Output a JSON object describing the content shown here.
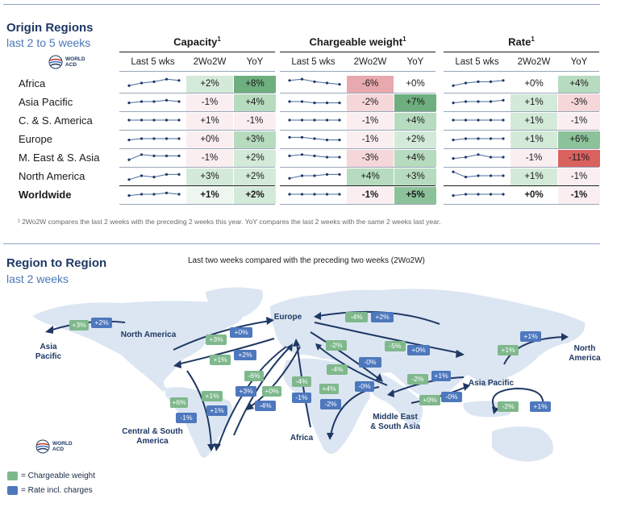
{
  "origin": {
    "title": "Origin Regions",
    "subtitle": "last 2 to 5 weeks",
    "logo_text": "WORLD ACD",
    "groups": [
      {
        "title": "Capacity",
        "sup": "1",
        "headers": [
          "Last 5 wks",
          "2Wo2W",
          "YoY"
        ]
      },
      {
        "title": "Chargeable weight",
        "sup": "1",
        "headers": [
          "Last 5 wks",
          "2Wo2W",
          "YoY"
        ]
      },
      {
        "title": "Rate",
        "sup": "1",
        "headers": [
          "Last 5 wks",
          "2Wo2W",
          "YoY"
        ]
      }
    ],
    "rows": [
      {
        "label": "Africa",
        "bold": false,
        "capacity": {
          "trend": [
            3,
            5,
            6,
            8,
            7
          ],
          "w2": "+2%",
          "yoy": "+8%"
        },
        "weight": {
          "trend": [
            7,
            8,
            6,
            5,
            4
          ],
          "w2": "-6%",
          "yoy": "+0%"
        },
        "rate": {
          "trend": [
            3,
            5,
            6,
            6,
            7
          ],
          "w2": "+0%",
          "yoy": "+4%"
        }
      },
      {
        "label": "Asia Pacific",
        "bold": false,
        "capacity": {
          "trend": [
            4,
            5,
            5,
            6,
            5
          ],
          "w2": "-1%",
          "yoy": "+4%"
        },
        "weight": {
          "trend": [
            5,
            5,
            4,
            4,
            4
          ],
          "w2": "-2%",
          "yoy": "+7%"
        },
        "rate": {
          "trend": [
            4,
            5,
            5,
            5,
            6
          ],
          "w2": "+1%",
          "yoy": "-3%"
        }
      },
      {
        "label": "C. & S. America",
        "bold": false,
        "capacity": {
          "trend": [
            5,
            5,
            5,
            5,
            5
          ],
          "w2": "+1%",
          "yoy": "-1%"
        },
        "weight": {
          "trend": [
            5,
            5,
            5,
            5,
            5
          ],
          "w2": "-1%",
          "yoy": "+4%"
        },
        "rate": {
          "trend": [
            5,
            5,
            5,
            5,
            5
          ],
          "w2": "+1%",
          "yoy": "-1%"
        }
      },
      {
        "label": "Europe",
        "bold": false,
        "capacity": {
          "trend": [
            4,
            5,
            5,
            5,
            5
          ],
          "w2": "+0%",
          "yoy": "+3%"
        },
        "weight": {
          "trend": [
            6,
            6,
            5,
            4,
            4
          ],
          "w2": "-1%",
          "yoy": "+2%"
        },
        "rate": {
          "trend": [
            4,
            5,
            5,
            5,
            5
          ],
          "w2": "+1%",
          "yoy": "+6%"
        }
      },
      {
        "label": "M. East & S. Asia",
        "bold": false,
        "capacity": {
          "trend": [
            3,
            7,
            6,
            6,
            6
          ],
          "w2": "-1%",
          "yoy": "+2%"
        },
        "weight": {
          "trend": [
            6,
            7,
            6,
            5,
            5
          ],
          "w2": "-3%",
          "yoy": "+4%"
        },
        "rate": {
          "trend": [
            4,
            5,
            7,
            5,
            5
          ],
          "w2": "-1%",
          "yoy": "-11%"
        }
      },
      {
        "label": "North America",
        "bold": false,
        "capacity": {
          "trend": [
            2,
            5,
            4,
            6,
            6
          ],
          "w2": "+3%",
          "yoy": "+2%"
        },
        "weight": {
          "trend": [
            3,
            5,
            5,
            6,
            6
          ],
          "w2": "+4%",
          "yoy": "+3%"
        },
        "rate": {
          "trend": [
            8,
            4,
            5,
            5,
            5
          ],
          "w2": "+1%",
          "yoy": "-1%"
        }
      },
      {
        "label": "Worldwide",
        "bold": true,
        "capacity": {
          "trend": [
            4,
            5,
            5,
            6,
            5
          ],
          "w2": "+1%",
          "yoy": "+2%"
        },
        "weight": {
          "trend": [
            5,
            5,
            5,
            5,
            5
          ],
          "w2": "-1%",
          "yoy": "+5%"
        },
        "rate": {
          "trend": [
            4,
            5,
            5,
            5,
            5
          ],
          "w2": "+0%",
          "yoy": "-1%"
        }
      }
    ],
    "cell_colors": {
      "capacity": {
        "w2": [
          "#d4ead9",
          "#faeef1",
          "#faeef1",
          "#faeef1",
          "#faeef1",
          "#d4ead9",
          "#eef6f0"
        ],
        "yoy": [
          "#6fae7e",
          "#b7dbbf",
          "#faeef1",
          "#b7dbbf",
          "#d4ead9",
          "#d4ead9",
          "#d4ead9"
        ]
      },
      "weight": {
        "w2": [
          "#e8a9ae",
          "#f5d6d9",
          "#faeef1",
          "#faeef1",
          "#f5d6d9",
          "#b7dbbf",
          "#faeef1"
        ],
        "yoy": [
          "#ffffff",
          "#6fae7e",
          "#b7dbbf",
          "#d4ead9",
          "#b7dbbf",
          "#b7dbbf",
          "#8cc29a"
        ]
      },
      "rate": {
        "w2": [
          "#ffffff",
          "#d4ead9",
          "#d4ead9",
          "#d4ead9",
          "#faeef1",
          "#d4ead9",
          "#ffffff"
        ],
        "yoy": [
          "#b7dbbf",
          "#f5d6d9",
          "#faeef1",
          "#8cc29a",
          "#d9625f",
          "#faeef1",
          "#faeef1"
        ]
      }
    },
    "footnote": "¹ 2Wo2W compares the last 2 weeks with the preceding 2 weeks this year. YoY compares the last 2 weeks with the same 2 weeks last year."
  },
  "region": {
    "title": "Region to Region",
    "subtitle": "last 2 weeks",
    "map_title": "Last two weeks compared with the preceding two weeks (2Wo2W)",
    "logo_text": "WORLD ACD",
    "labels": {
      "asia_pacific_left": "Asia\nPacific",
      "north_america": "North America",
      "europe": "Europe",
      "north_america_right": "North\nAmerica",
      "asia_pacific_right": "Asia Pacific",
      "central_south_america": "Central & South\nAmerica",
      "africa": "Africa",
      "mesa": "Middle East\n& South Asia"
    },
    "badges": [
      {
        "id": "na-ap-w",
        "kind": "g",
        "text": "+3%"
      },
      {
        "id": "na-ap-r",
        "kind": "b",
        "text": "+2%"
      },
      {
        "id": "na-eu-w",
        "kind": "g",
        "text": "+3%"
      },
      {
        "id": "na-eu-r",
        "kind": "b",
        "text": "+0%"
      },
      {
        "id": "eu-na-w",
        "kind": "g",
        "text": "+1%"
      },
      {
        "id": "eu-na-r",
        "kind": "b",
        "text": "+2%"
      },
      {
        "id": "ap-eu-w",
        "kind": "g",
        "text": "-4%"
      },
      {
        "id": "ap-eu-r",
        "kind": "b",
        "text": "+2%"
      },
      {
        "id": "eu-ap-w",
        "kind": "g",
        "text": "-5%"
      },
      {
        "id": "eu-ap-r",
        "kind": "b",
        "text": "+0%"
      },
      {
        "id": "eu-me-w",
        "kind": "g",
        "text": "-2%"
      },
      {
        "id": "eu-me-r",
        "kind": "b",
        "text": "-0%"
      },
      {
        "id": "me-eu-w",
        "kind": "g",
        "text": "-4%"
      },
      {
        "id": "me-eu-r",
        "kind": "b",
        "text": "-0%"
      },
      {
        "id": "ap-me-w",
        "kind": "g",
        "text": "-2%"
      },
      {
        "id": "ap-me-r",
        "kind": "b",
        "text": "+1%"
      },
      {
        "id": "me-ap-w",
        "kind": "g",
        "text": "+0%"
      },
      {
        "id": "me-ap-r",
        "kind": "b",
        "text": "-0%"
      },
      {
        "id": "ap-na-w",
        "kind": "g",
        "text": "+1%"
      },
      {
        "id": "ap-na-r",
        "kind": "b",
        "text": "+1%"
      },
      {
        "id": "ap-ap-w",
        "kind": "g",
        "text": "-2%"
      },
      {
        "id": "ap-ap-r",
        "kind": "b",
        "text": "+1%"
      },
      {
        "id": "eu-sa-w",
        "kind": "g",
        "text": "-6%"
      },
      {
        "id": "eu-sa-r",
        "kind": "b",
        "text": "+3%"
      },
      {
        "id": "sa-eu-w",
        "kind": "g",
        "text": "+1%"
      },
      {
        "id": "sa-eu-r",
        "kind": "b",
        "text": "+1%"
      },
      {
        "id": "na-sa-w",
        "kind": "g",
        "text": "+6%"
      },
      {
        "id": "na-sa-r",
        "kind": "b",
        "text": "-1%"
      },
      {
        "id": "eu-af-w",
        "kind": "g",
        "text": "+0%"
      },
      {
        "id": "eu-af-r",
        "kind": "b",
        "text": "-4%"
      },
      {
        "id": "af-eu-w",
        "kind": "g",
        "text": "-4%"
      },
      {
        "id": "af-eu-r",
        "kind": "b",
        "text": "-1%"
      },
      {
        "id": "me-af-w",
        "kind": "g",
        "text": "+4%"
      },
      {
        "id": "me-af-r",
        "kind": "b",
        "text": "-2%"
      }
    ],
    "legend": [
      {
        "color": "#7fb88c",
        "text": "= Chargeable weight"
      },
      {
        "color": "#4e78bd",
        "text": "= Rate incl. charges"
      }
    ]
  }
}
